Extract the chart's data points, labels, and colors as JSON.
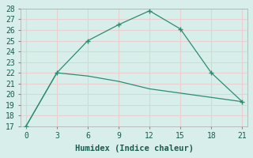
{
  "line1_x": [
    0,
    3,
    6,
    9,
    12,
    15,
    18,
    21
  ],
  "line1_y": [
    17,
    22,
    25,
    26.5,
    27.8,
    26.1,
    22,
    19.3
  ],
  "line2_x": [
    0,
    3,
    6,
    9,
    12,
    15,
    18,
    21
  ],
  "line2_y": [
    17,
    22,
    21.7,
    21.2,
    20.5,
    20.1,
    19.7,
    19.3
  ],
  "line_color": "#2e8b72",
  "bg_color": "#d8eeea",
  "grid_color": "#e8d0d0",
  "xlabel": "Humidex (Indice chaleur)",
  "xlim": [
    -0.5,
    21.5
  ],
  "ylim": [
    17,
    28
  ],
  "xticks": [
    0,
    3,
    6,
    9,
    12,
    15,
    18,
    21
  ],
  "yticks": [
    17,
    18,
    19,
    20,
    21,
    22,
    23,
    24,
    25,
    26,
    27,
    28
  ],
  "font_size": 7.5
}
